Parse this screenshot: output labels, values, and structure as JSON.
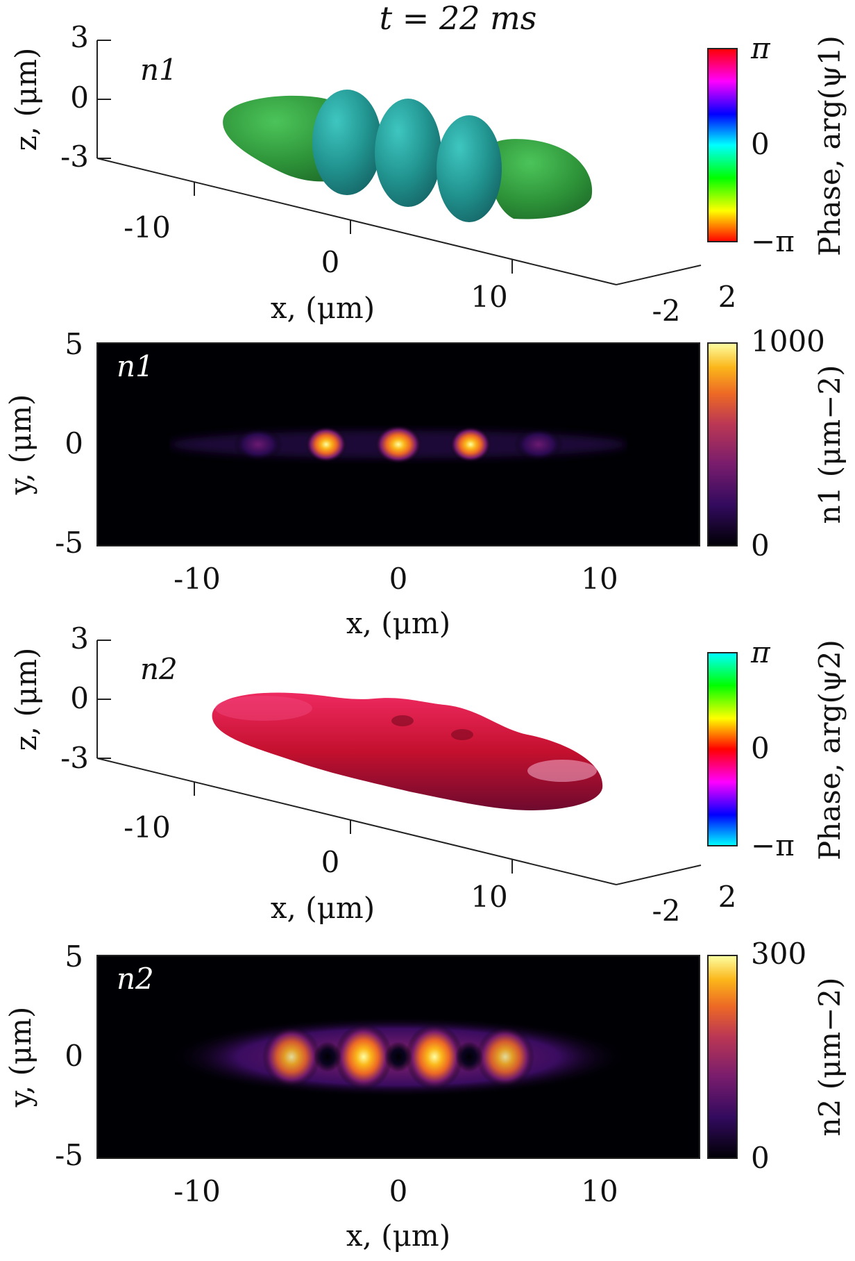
{
  "title": "t = 22 ms",
  "chart_data": [
    {
      "type": "isosurface-3d",
      "panel_label": "n1",
      "zlabel": "z,  (μm)",
      "xlabel": "x,  (μm)",
      "z_ticks": [
        "3",
        "0",
        "-3"
      ],
      "x_ticks": [
        "-10",
        "0",
        "10"
      ],
      "y_ticks": [
        "-2",
        "2"
      ],
      "colorbar": {
        "label": "Phase, arg(ψ1)",
        "ticks": [
          "π",
          "0",
          "−π"
        ],
        "colormap": "hsv"
      },
      "lobes": [
        {
          "x": -8.5,
          "color": "#2f9a3c"
        },
        {
          "x": -3.6,
          "color": "#2aa39a"
        },
        {
          "x": 0,
          "color": "#2aa39a"
        },
        {
          "x": 3.6,
          "color": "#2aa39a"
        },
        {
          "x": 8.5,
          "color": "#2f9a3c"
        }
      ]
    },
    {
      "type": "heatmap",
      "panel_label": "n1",
      "xlabel": "x, (μm)",
      "ylabel": "y, (μm)",
      "xlim": [
        -15,
        15
      ],
      "ylim": [
        -5,
        5
      ],
      "x_ticks": [
        "-10",
        "0",
        "10"
      ],
      "y_ticks": [
        "5",
        "0",
        "-5"
      ],
      "colorbar": {
        "label": "n1 (μm−2)",
        "min": 0,
        "max": 1000,
        "ticks": [
          "1000",
          "0"
        ],
        "colormap": "inferno"
      },
      "peaks": [
        {
          "x": -7.0,
          "density": 180
        },
        {
          "x": -3.6,
          "density": 880
        },
        {
          "x": 0,
          "density": 1000
        },
        {
          "x": 3.6,
          "density": 880
        },
        {
          "x": 7.0,
          "density": 180
        }
      ]
    },
    {
      "type": "isosurface-3d",
      "panel_label": "n2",
      "zlabel": "z,  (μm)",
      "xlabel": "x,  (μm)",
      "z_ticks": [
        "3",
        "0",
        "-3"
      ],
      "x_ticks": [
        "-10",
        "0",
        "10"
      ],
      "y_ticks": [
        "-2",
        "2"
      ],
      "colorbar": {
        "label": "Phase, arg(ψ2)",
        "ticks": [
          "π",
          "0",
          "−π"
        ],
        "colormap": "hsv-shifted"
      },
      "body_color": "#c8153c"
    },
    {
      "type": "heatmap",
      "panel_label": "n2",
      "xlabel": "x, (μm)",
      "ylabel": "y, (μm)",
      "xlim": [
        -15,
        15
      ],
      "ylim": [
        -5,
        5
      ],
      "x_ticks": [
        "-10",
        "0",
        "10"
      ],
      "y_ticks": [
        "5",
        "0",
        "-5"
      ],
      "colorbar": {
        "label": "n2 (μm−2)",
        "min": 0,
        "max": 300,
        "ticks": [
          "300",
          "0"
        ],
        "colormap": "inferno"
      },
      "peaks": [
        {
          "x": -5.2,
          "density": 200
        },
        {
          "x": -1.8,
          "density": 300
        },
        {
          "x": 1.8,
          "density": 300
        },
        {
          "x": 5.2,
          "density": 200
        }
      ],
      "holes": [
        -3.6,
        0,
        3.6
      ]
    }
  ]
}
